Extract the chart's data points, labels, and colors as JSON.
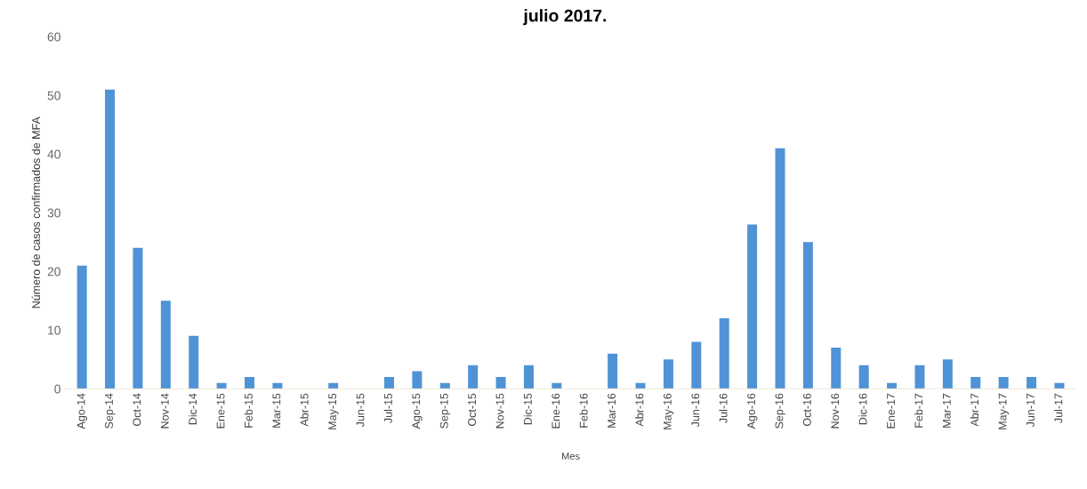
{
  "chart_data": {
    "type": "bar",
    "title": "julio 2017.",
    "xlabel": "Mes",
    "ylabel": "Número de casos confirmados de MFA",
    "categories": [
      "Ago-14",
      "Sep-14",
      "Oct-14",
      "Nov-14",
      "Dic-14",
      "Ene-15",
      "Feb-15",
      "Mar-15",
      "Abr-15",
      "May-15",
      "Jun-15",
      "Jul-15",
      "Ago-15",
      "Sep-15",
      "Oct-15",
      "Nov-15",
      "Dic-15",
      "Ene-16",
      "Feb-16",
      "Mar-16",
      "Abr-16",
      "May-16",
      "Jun-16",
      "Jul-16",
      "Ago-16",
      "Sep-16",
      "Oct-16",
      "Nov-16",
      "Dic-16",
      "Ene-17",
      "Feb-17",
      "Mar-17",
      "Abr-17",
      "May-17",
      "Jun-17",
      "Jul-17"
    ],
    "values": [
      21,
      51,
      24,
      15,
      9,
      1,
      2,
      1,
      0,
      1,
      0,
      2,
      3,
      1,
      4,
      2,
      4,
      1,
      0,
      6,
      1,
      5,
      8,
      12,
      28,
      41,
      25,
      7,
      4,
      1,
      4,
      5,
      2,
      2,
      2,
      1
    ],
    "color": "#4f93d6",
    "ylim": [
      0,
      60
    ],
    "yticks": [
      0,
      10,
      20,
      30,
      40,
      50,
      60
    ],
    "grid": false
  }
}
